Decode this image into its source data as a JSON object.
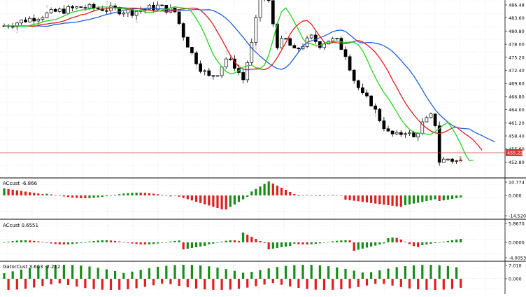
{
  "main_chart": {
    "price_axis_labels": [
      "486.48",
      "483.60",
      "480.80",
      "478.00",
      "475.20",
      "472.40",
      "469.60",
      "466.80",
      "464.00",
      "461.20",
      "458.40",
      "455.60",
      "452.80"
    ],
    "current_price_tag": "455.22",
    "colors": {
      "bull": "#ffffff",
      "bear": "#000000",
      "jaw": "#1f5fd6",
      "teeth": "#e21b1b",
      "lips": "#22d322",
      "current_line": "#d63a3a",
      "arrow": "#e04b3a",
      "fractal": "#a0a0a0"
    }
  },
  "ac_panel": {
    "label": "ACcust -6.866",
    "axis_labels": [
      "10.774",
      "0.000",
      "-14.520"
    ],
    "colors": {
      "up": "#1a8b1a",
      "down": "#e01e1e"
    }
  },
  "ac2_panel": {
    "label": "ACcust 0.6551",
    "axis_labels": [
      "5.8670",
      "0.0000",
      "-4.0053"
    ],
    "colors": {
      "up": "#1a8b1a",
      "down": "#e01e1e"
    }
  },
  "gator_panel": {
    "label": "GatorCust 3.663 -2.212",
    "axis_labels": [
      "7.010",
      "0.000"
    ],
    "colors": {
      "up": "#1a8b1a",
      "down": "#e01e1e"
    }
  }
}
